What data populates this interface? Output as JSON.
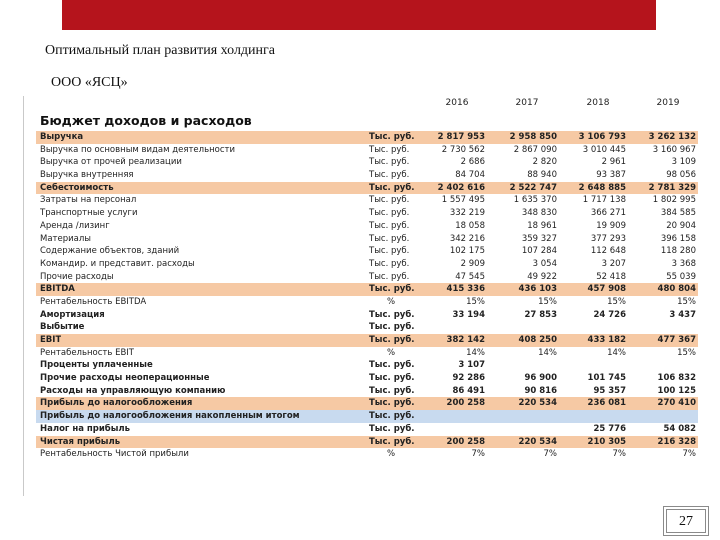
{
  "slide": {
    "title": "Оптимальный план развития холдинга",
    "subtitle": "ООО «ЯСЦ»",
    "page_number": "27",
    "accent_color": "#b5141c"
  },
  "table": {
    "section_title": "Бюджет доходов и расходов",
    "years": [
      "2016",
      "2017",
      "2018",
      "2019"
    ],
    "rows": [
      {
        "label": "Выручка",
        "unit": "Тыс. руб.",
        "values": [
          "2 817 953",
          "2 958 850",
          "3 106 793",
          "3 262 132"
        ],
        "style": "orange"
      },
      {
        "label": "Выручка по основным видам деятельности",
        "unit": "Тыс. руб.",
        "values": [
          "2 730 562",
          "2 867 090",
          "3 010 445",
          "3 160 967"
        ],
        "style": "plain"
      },
      {
        "label": "Выручка от прочей реализации",
        "unit": "Тыс. руб.",
        "values": [
          "2 686",
          "2 820",
          "2 961",
          "3 109"
        ],
        "style": "plain"
      },
      {
        "label": "Выручка внутренняя",
        "unit": "Тыс. руб.",
        "values": [
          "84 704",
          "88 940",
          "93 387",
          "98 056"
        ],
        "style": "plain"
      },
      {
        "label": "Себестоимость",
        "unit": "Тыс. руб.",
        "values": [
          "2 402 616",
          "2 522 747",
          "2 648 885",
          "2 781 329"
        ],
        "style": "orange"
      },
      {
        "label": "Затраты на персонал",
        "unit": "Тыс. руб.",
        "values": [
          "1 557 495",
          "1 635 370",
          "1 717 138",
          "1 802 995"
        ],
        "style": "plain"
      },
      {
        "label": "Транспортные услуги",
        "unit": "Тыс. руб.",
        "values": [
          "332 219",
          "348 830",
          "366 271",
          "384 585"
        ],
        "style": "plain"
      },
      {
        "label": "Аренда /лизинг",
        "unit": "Тыс. руб.",
        "values": [
          "18 058",
          "18 961",
          "19 909",
          "20 904"
        ],
        "style": "plain"
      },
      {
        "label": "Материалы",
        "unit": "Тыс. руб.",
        "values": [
          "342 216",
          "359 327",
          "377 293",
          "396 158"
        ],
        "style": "plain"
      },
      {
        "label": "Содержание объектов, зданий",
        "unit": "Тыс. руб.",
        "values": [
          "102 175",
          "107 284",
          "112 648",
          "118 280"
        ],
        "style": "plain"
      },
      {
        "label": "Командир. и представит. расходы",
        "unit": "Тыс. руб.",
        "values": [
          "2 909",
          "3 054",
          "3 207",
          "3 368"
        ],
        "style": "plain"
      },
      {
        "label": "Прочие расходы",
        "unit": "Тыс. руб.",
        "values": [
          "47 545",
          "49 922",
          "52 418",
          "55 039"
        ],
        "style": "plain"
      },
      {
        "label": "EBITDA",
        "unit": "Тыс. руб.",
        "values": [
          "415 336",
          "436 103",
          "457 908",
          "480 804"
        ],
        "style": "orange"
      },
      {
        "label": "Рентабельность EBITDA",
        "unit": "%",
        "values": [
          "15%",
          "15%",
          "15%",
          "15%"
        ],
        "style": "pct"
      },
      {
        "label": "Амортизация",
        "unit": "Тыс. руб.",
        "values": [
          "33 194",
          "27 853",
          "24 726",
          "3 437"
        ],
        "style": "bold"
      },
      {
        "label": "Выбытие",
        "unit": "Тыс. руб.",
        "values": [
          "",
          "",
          "",
          ""
        ],
        "style": "bold"
      },
      {
        "label": "EBIT",
        "unit": "Тыс. руб.",
        "values": [
          "382 142",
          "408 250",
          "433 182",
          "477 367"
        ],
        "style": "orange"
      },
      {
        "label": "Рентабельность EBIT",
        "unit": "%",
        "values": [
          "14%",
          "14%",
          "14%",
          "15%"
        ],
        "style": "pct"
      },
      {
        "label": "Проценты уплаченные",
        "unit": "Тыс. руб.",
        "values": [
          "3 107",
          "",
          "",
          ""
        ],
        "style": "bold"
      },
      {
        "label": "Прочие расходы неоперационные",
        "unit": "Тыс. руб.",
        "values": [
          "92 286",
          "96 900",
          "101 745",
          "106 832"
        ],
        "style": "bold"
      },
      {
        "label": "Расходы на управляющую компанию",
        "unit": "Тыс. руб.",
        "values": [
          "86 491",
          "90 816",
          "95 357",
          "100 125"
        ],
        "style": "bold"
      },
      {
        "label": "Прибыль до налогообложения",
        "unit": "Тыс. руб.",
        "values": [
          "200 258",
          "220 534",
          "236 081",
          "270 410"
        ],
        "style": "orange"
      },
      {
        "label": "Прибыль до налогообложения накопленным итогом",
        "unit": "Тыс. руб.",
        "values": [
          "",
          "",
          "",
          ""
        ],
        "style": "blue"
      },
      {
        "label": "Налог на прибыль",
        "unit": "Тыс. руб.",
        "values": [
          "",
          "",
          "25 776",
          "54 082"
        ],
        "style": "bold"
      },
      {
        "label": "Чистая прибыль",
        "unit": "Тыс. руб.",
        "values": [
          "200 258",
          "220 534",
          "210 305",
          "216 328"
        ],
        "style": "orange"
      },
      {
        "label": "Рентабельность Чистой прибыли",
        "unit": "%",
        "values": [
          "7%",
          "7%",
          "7%",
          "7%"
        ],
        "style": "pct"
      }
    ]
  }
}
